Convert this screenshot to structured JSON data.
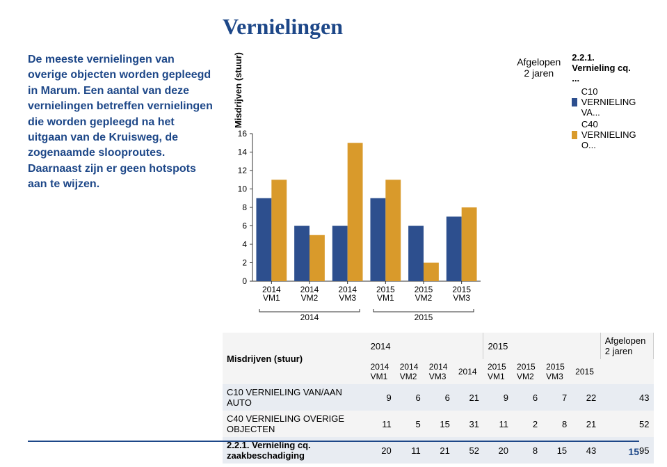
{
  "title": "Vernielingen",
  "paragraph": "De meeste vernielingen van overige objecten worden gepleegd in Marum. Een aantal van deze vernielingen betreffen vernielingen die worden gepleegd na het uitgaan van de Kruisweg, de zogenaamde slooproutes. Daarnaast zijn er geen hotspots aan te wijzen.",
  "page_number": "15",
  "chart": {
    "type": "bar-grouped",
    "ylabel": "Misdrijven (stuur)",
    "ylim": [
      0,
      16
    ],
    "ytick_step": 2,
    "categories": [
      "2014\nVM1",
      "2014\nVM2",
      "2014\nVM3",
      "2015\nVM1",
      "2015\nVM2",
      "2015\nVM3"
    ],
    "year_groups": [
      "2014",
      "2015"
    ],
    "afgelopen_label": "Afgelopen 2 jaren",
    "series": [
      {
        "name": "C10 VERNIELING VA...",
        "color": "#2d4f8e",
        "values": [
          9,
          6,
          6,
          9,
          6,
          7
        ]
      },
      {
        "name": "C40 VERNIELING O...",
        "color": "#d99a2b",
        "values": [
          11,
          5,
          15,
          11,
          2,
          8
        ]
      }
    ],
    "legend_title": "2.2.1. Vernieling cq. ...",
    "axis_color": "#333333",
    "tick_fontsize": 12,
    "bar_width": 0.8,
    "background_color": "#ffffff"
  },
  "table": {
    "header_metric": "Misdrijven (stuur)",
    "year_cols": [
      "2014",
      "2015"
    ],
    "sub_cols": [
      [
        "2014 VM1",
        "2014 VM2",
        "2014 VM3",
        "2014"
      ],
      [
        "2015 VM1",
        "2015 VM2",
        "2015 VM3",
        "2015"
      ]
    ],
    "last_col": "Afgelopen 2 jaren",
    "rows": [
      {
        "label": "C10 VERNIELING VAN/AAN AUTO",
        "vals": [
          9,
          6,
          6,
          21,
          9,
          6,
          7,
          22,
          43
        ]
      },
      {
        "label": "C40 VERNIELING OVERIGE OBJECTEN",
        "vals": [
          11,
          5,
          15,
          31,
          11,
          2,
          8,
          21,
          52
        ]
      },
      {
        "label": "2.2.1. Vernieling cq. zaakbeschadiging",
        "vals": [
          20,
          11,
          21,
          52,
          20,
          8,
          15,
          43,
          95
        ]
      }
    ],
    "header_bg": "#f4f4f4",
    "row_alt_bg": "#e8ecf2"
  }
}
